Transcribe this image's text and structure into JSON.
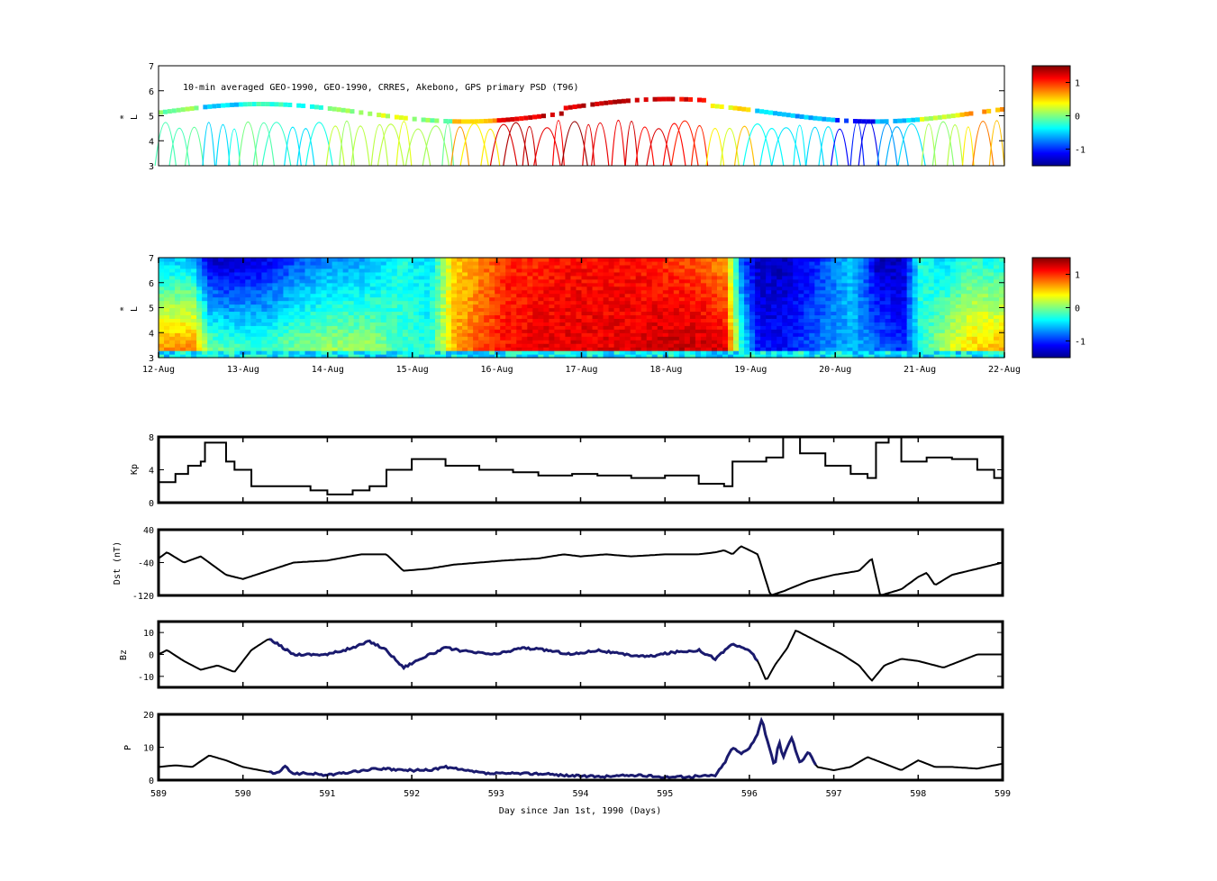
{
  "chart_data": [
    {
      "type": "scatter",
      "id": "psd-observations",
      "annotation": "10-min averaged GEO-1990, GEO-1990, CRRES, Akebono, GPS  primary PSD (T96)",
      "ylabel_top": "*",
      "ylabel": "L",
      "ylim": [
        3,
        7
      ],
      "yticks": [
        "3",
        "4",
        "5",
        "6",
        "7"
      ],
      "xlim": [
        589,
        599
      ],
      "colorbar": {
        "colormap": "jet",
        "range": [
          -1.5,
          1.5
        ],
        "ticks": [
          "-1",
          "0",
          "1"
        ],
        "tick_values": [
          -1,
          0,
          1
        ]
      },
      "segment_psd": [
        0.0,
        -0.5,
        -0.2,
        -0.3,
        0.1,
        0.2,
        0.0,
        0.6,
        1.2,
        1.3,
        1.3,
        1.3,
        1.2,
        0.4,
        -0.5,
        -0.6,
        -1.1,
        -0.5,
        0.2,
        0.6
      ]
    },
    {
      "type": "heatmap",
      "id": "psd-reanalysis",
      "ylabel_top": "*",
      "ylabel": "L",
      "ylim": [
        3,
        7
      ],
      "yticks": [
        "3",
        "4",
        "5",
        "6",
        "7"
      ],
      "xlim": [
        589,
        599
      ],
      "xticklabels": [
        "12-Aug",
        "13-Aug",
        "14-Aug",
        "15-Aug",
        "16-Aug",
        "17-Aug",
        "18-Aug",
        "19-Aug",
        "20-Aug",
        "21-Aug",
        "22-Aug"
      ],
      "colorbar": {
        "colormap": "jet",
        "range": [
          -1.5,
          1.5
        ],
        "ticks": [
          "-1",
          "0",
          "1"
        ],
        "tick_values": [
          -1,
          0,
          1
        ]
      },
      "x_day": [
        589,
        589.4,
        589.6,
        589.8,
        590.2,
        590.6,
        591.0,
        591.5,
        591.9,
        592.2,
        592.5,
        592.8,
        593.1,
        593.4,
        593.8,
        594.2,
        594.6,
        595.0,
        595.4,
        595.7,
        595.9,
        596.1,
        596.4,
        596.8,
        597.2,
        597.5,
        597.8,
        598.0,
        598.3,
        598.6,
        598.8,
        599
      ],
      "inner_psd": [
        0.7,
        0.8,
        0.0,
        -0.1,
        -0.2,
        0.0,
        0.1,
        0.1,
        -0.2,
        -0.3,
        0.6,
        0.9,
        1.1,
        1.2,
        1.2,
        1.2,
        1.2,
        1.3,
        1.3,
        1.2,
        -0.3,
        -1.1,
        -1.1,
        -0.8,
        -0.6,
        -0.8,
        -1.0,
        -0.3,
        0.2,
        0.5,
        0.6,
        0.6
      ],
      "outer_psd": [
        -0.5,
        -0.5,
        -1.2,
        -1.3,
        -1.2,
        -0.9,
        -0.7,
        -0.6,
        -0.3,
        -0.5,
        0.5,
        0.7,
        1.0,
        1.0,
        1.1,
        1.1,
        1.1,
        1.0,
        0.9,
        0.7,
        -0.9,
        -1.3,
        -1.3,
        -1.0,
        -0.5,
        -1.3,
        -1.3,
        -0.3,
        -0.5,
        -0.2,
        -0.3,
        -0.3
      ]
    },
    {
      "type": "line",
      "id": "kp-index",
      "ylabel": "Kp",
      "ylim": [
        0,
        8
      ],
      "yticks": [
        "0",
        "4",
        "8"
      ],
      "xlim": [
        589,
        599
      ],
      "x": [
        589,
        589.2,
        589.35,
        589.5,
        589.55,
        589.8,
        589.9,
        590.1,
        590.5,
        590.8,
        591.0,
        591.3,
        591.5,
        591.7,
        592.0,
        592.4,
        592.8,
        593.2,
        593.5,
        593.9,
        594.2,
        594.6,
        595.0,
        595.4,
        595.7,
        595.8,
        596.2,
        596.4,
        596.6,
        596.9,
        597.2,
        597.4,
        597.5,
        597.65,
        597.8,
        598.1,
        598.4,
        598.7,
        598.9,
        599
      ],
      "y": [
        2.5,
        3.5,
        4.5,
        5.0,
        7.3,
        5.0,
        4.0,
        2.0,
        2.0,
        1.5,
        1.0,
        1.5,
        2.0,
        4.0,
        5.3,
        4.5,
        4.0,
        3.7,
        3.3,
        3.5,
        3.3,
        3.0,
        3.3,
        2.3,
        2.0,
        5.0,
        5.5,
        8.0,
        6.0,
        4.5,
        3.5,
        3.0,
        7.3,
        8.0,
        5.0,
        5.5,
        5.3,
        4.0,
        3.0,
        4.0
      ]
    },
    {
      "type": "line",
      "id": "dst-index",
      "ylabel": "Dst (nT)",
      "ylim": [
        -120,
        40
      ],
      "yticks": [
        "-120",
        "-40",
        "40"
      ],
      "xlim": [
        589,
        599
      ],
      "x": [
        589,
        589.1,
        589.3,
        589.5,
        589.8,
        590.0,
        590.3,
        590.6,
        591.0,
        591.4,
        591.7,
        591.9,
        592.2,
        592.5,
        592.8,
        593.1,
        593.5,
        593.8,
        594.0,
        594.3,
        594.6,
        595.0,
        595.4,
        595.6,
        595.7,
        595.8,
        595.9,
        596.1,
        596.25,
        596.4,
        596.7,
        597.0,
        597.3,
        597.45,
        597.55,
        597.8,
        598.0,
        598.1,
        598.2,
        598.4,
        598.7,
        599
      ],
      "y": [
        -30,
        -15,
        -40,
        -25,
        -70,
        -80,
        -60,
        -40,
        -35,
        -20,
        -20,
        -60,
        -55,
        -45,
        -40,
        -35,
        -30,
        -20,
        -25,
        -20,
        -25,
        -20,
        -20,
        -15,
        -10,
        -20,
        0,
        -20,
        -120,
        -110,
        -85,
        -70,
        -60,
        -30,
        -120,
        -105,
        -75,
        -65,
        -95,
        -70,
        -55,
        -40
      ]
    },
    {
      "type": "line",
      "id": "imf-bz",
      "ylabel": "Bz",
      "ylim": [
        -15,
        15
      ],
      "yticks": [
        "-10",
        "0",
        "10"
      ],
      "tick_values": [
        -10,
        0,
        10
      ],
      "xlim": [
        589,
        599
      ],
      "highlight_range": [
        590.3,
        596.1
      ],
      "x": [
        589,
        589.1,
        589.3,
        589.5,
        589.7,
        589.9,
        590.1,
        590.3,
        590.4,
        590.6,
        591.0,
        591.3,
        591.5,
        591.7,
        591.9,
        592.1,
        592.4,
        592.7,
        593.0,
        593.3,
        593.6,
        593.9,
        594.2,
        594.5,
        594.8,
        595.1,
        595.4,
        595.6,
        595.8,
        595.9,
        596.0,
        596.1,
        596.2,
        596.3,
        596.45,
        596.55,
        596.8,
        597.1,
        597.3,
        597.45,
        597.6,
        597.8,
        598.0,
        598.3,
        598.5,
        598.7,
        599
      ],
      "y": [
        0,
        2,
        -3,
        -7,
        -5,
        -8,
        2,
        7,
        5,
        0,
        0,
        3,
        6,
        2,
        -6,
        -2,
        3,
        1,
        0,
        3,
        2,
        0,
        2,
        0,
        -1,
        1,
        2,
        -2,
        5,
        3,
        2,
        -3,
        -12,
        -5,
        3,
        11,
        6,
        0,
        -5,
        -12,
        -5,
        -2,
        -3,
        -6,
        -3,
        0,
        0
      ]
    },
    {
      "type": "line",
      "id": "solar-wind-pressure",
      "ylabel": "P",
      "xlabel": "Day since Jan 1st, 1990 (Days)",
      "ylim": [
        0,
        20
      ],
      "yticks": [
        "0",
        "10",
        "20"
      ],
      "xlim": [
        589,
        599
      ],
      "xticklabels": [
        "589",
        "590",
        "591",
        "592",
        "593",
        "594",
        "595",
        "596",
        "597",
        "598",
        "599"
      ],
      "highlight_range": [
        590.3,
        596.8
      ],
      "x": [
        589,
        589.2,
        589.4,
        589.6,
        589.8,
        590.0,
        590.2,
        590.4,
        590.5,
        590.6,
        590.8,
        591.0,
        591.3,
        591.6,
        591.9,
        592.2,
        592.4,
        592.6,
        592.9,
        593.2,
        593.5,
        593.8,
        594.2,
        594.6,
        595.0,
        595.3,
        595.6,
        595.7,
        595.8,
        595.9,
        596.0,
        596.1,
        596.15,
        596.2,
        596.3,
        596.35,
        596.4,
        596.5,
        596.6,
        596.7,
        596.8,
        597.0,
        597.2,
        597.4,
        597.6,
        597.8,
        598.0,
        598.2,
        598.4,
        598.7,
        599
      ],
      "y": [
        4,
        4.5,
        4,
        7.5,
        6,
        4,
        3,
        2,
        4,
        2,
        2,
        1.5,
        2.5,
        3.5,
        3,
        3,
        4,
        3,
        2,
        2,
        2,
        1.5,
        1,
        1.5,
        1,
        1,
        1.5,
        5,
        10,
        8,
        10,
        14,
        19,
        13,
        4,
        12,
        7,
        13,
        5,
        9,
        4,
        3,
        4,
        7,
        5,
        3,
        6,
        4,
        4,
        3.5,
        5
      ]
    }
  ]
}
